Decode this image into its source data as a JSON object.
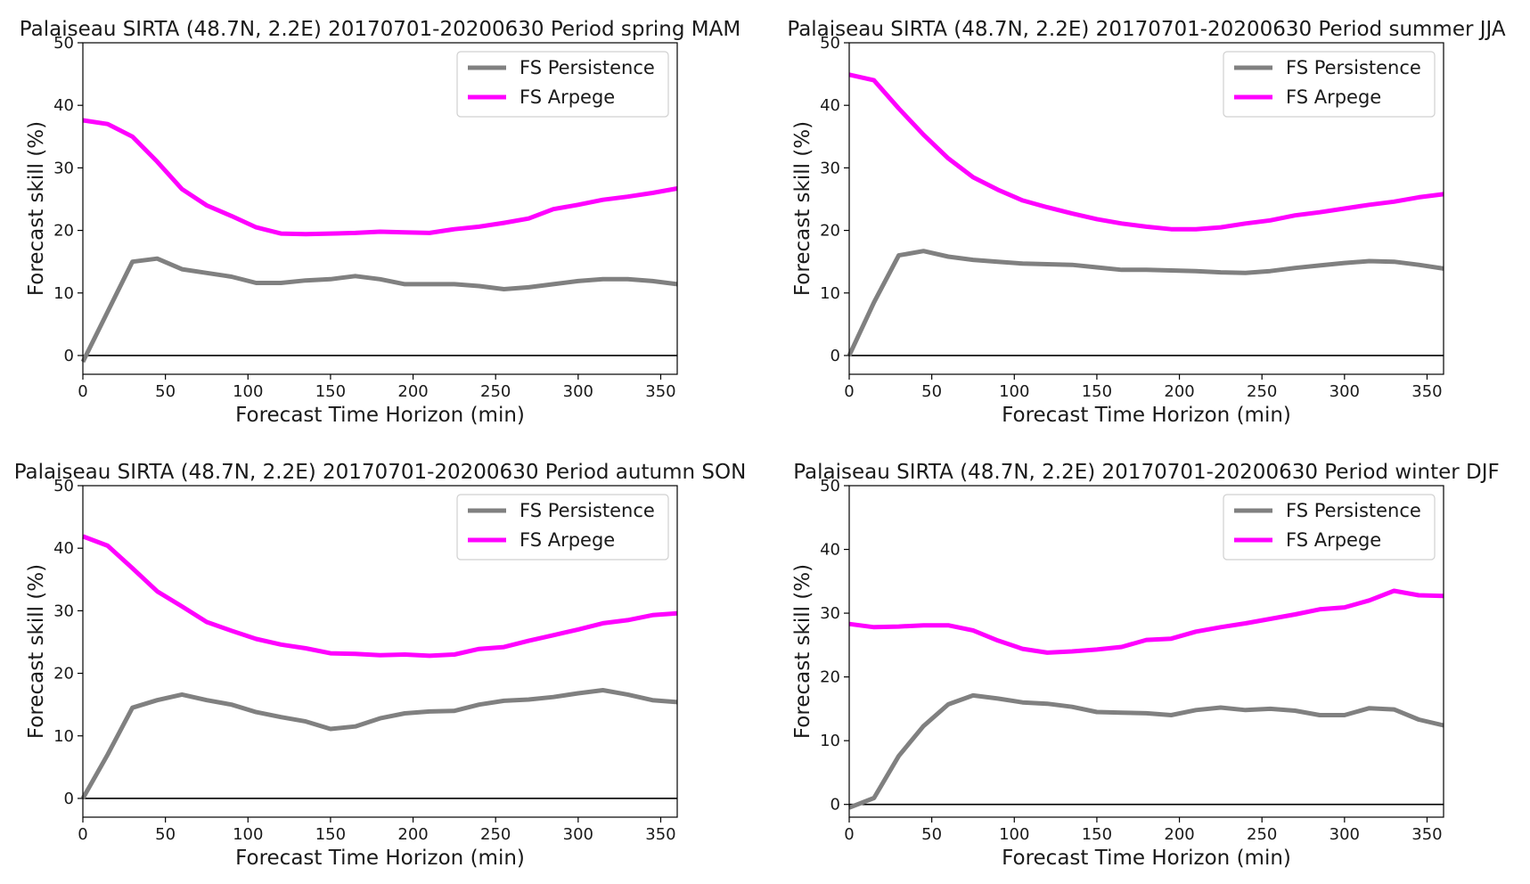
{
  "chart_data": [
    {
      "type": "line",
      "title": "Palaiseau SIRTA (48.7N, 2.2E) 20170701-20200630 Period spring MAM",
      "xlabel": "Forecast Time Horizon (min)",
      "ylabel": "Forecast skill (%)",
      "xlim": [
        0,
        360
      ],
      "ylim": [
        -3,
        50
      ],
      "xticks": [
        0,
        50,
        100,
        150,
        200,
        250,
        300,
        350
      ],
      "yticks": [
        0,
        10,
        20,
        30,
        40,
        50
      ],
      "legend": "top-right",
      "reference_line": 0,
      "x": [
        0,
        15,
        30,
        45,
        60,
        75,
        90,
        105,
        120,
        135,
        150,
        165,
        180,
        195,
        210,
        225,
        240,
        255,
        270,
        285,
        300,
        315,
        330,
        345,
        360
      ],
      "series": [
        {
          "name": "FS Persistence",
          "color": "#808080",
          "values": [
            -1,
            7,
            15,
            15.5,
            13.8,
            13.2,
            12.6,
            11.6,
            11.6,
            12,
            12.2,
            12.7,
            12.2,
            11.4,
            11.4,
            11.4,
            11.1,
            10.6,
            10.9,
            11.4,
            11.9,
            12.2,
            12.2,
            11.9,
            11.4
          ]
        },
        {
          "name": "FS Arpege",
          "color": "#ff00ff",
          "values": [
            37.6,
            37,
            35,
            31,
            26.6,
            24,
            22.3,
            20.5,
            19.5,
            19.4,
            19.5,
            19.6,
            19.8,
            19.7,
            19.6,
            20.2,
            20.6,
            21.2,
            21.9,
            23.4,
            24.1,
            24.9,
            25.4,
            26,
            26.7
          ]
        }
      ]
    },
    {
      "type": "line",
      "title": "Palaiseau SIRTA (48.7N, 2.2E) 20170701-20200630 Period summer JJA",
      "xlabel": "Forecast Time Horizon (min)",
      "ylabel": "Forecast skill (%)",
      "xlim": [
        0,
        360
      ],
      "ylim": [
        -3,
        50
      ],
      "xticks": [
        0,
        50,
        100,
        150,
        200,
        250,
        300,
        350
      ],
      "yticks": [
        0,
        10,
        20,
        30,
        40,
        50
      ],
      "legend": "top-right",
      "reference_line": 0,
      "x": [
        0,
        15,
        30,
        45,
        60,
        75,
        90,
        105,
        120,
        135,
        150,
        165,
        180,
        195,
        210,
        225,
        240,
        255,
        270,
        285,
        300,
        315,
        330,
        345,
        360
      ],
      "series": [
        {
          "name": "FS Persistence",
          "color": "#808080",
          "values": [
            0,
            8.5,
            16,
            16.7,
            15.8,
            15.3,
            15,
            14.7,
            14.6,
            14.5,
            14.1,
            13.7,
            13.7,
            13.6,
            13.5,
            13.3,
            13.2,
            13.5,
            14,
            14.4,
            14.8,
            15.1,
            15,
            14.5,
            13.9
          ]
        },
        {
          "name": "FS Arpege",
          "color": "#ff00ff",
          "values": [
            44.9,
            44,
            39.5,
            35.3,
            31.5,
            28.5,
            26.5,
            24.8,
            23.7,
            22.7,
            21.8,
            21.1,
            20.6,
            20.2,
            20.2,
            20.5,
            21.1,
            21.6,
            22.4,
            22.9,
            23.5,
            24.1,
            24.6,
            25.3,
            25.8
          ]
        }
      ]
    },
    {
      "type": "line",
      "title": "Palaiseau SIRTA (48.7N, 2.2E) 20170701-20200630 Period autumn SON",
      "xlabel": "Forecast Time Horizon (min)",
      "ylabel": "Forecast skill (%)",
      "xlim": [
        0,
        360
      ],
      "ylim": [
        -3,
        50
      ],
      "xticks": [
        0,
        50,
        100,
        150,
        200,
        250,
        300,
        350
      ],
      "yticks": [
        0,
        10,
        20,
        30,
        40,
        50
      ],
      "legend": "top-right",
      "reference_line": 0,
      "x": [
        0,
        15,
        30,
        45,
        60,
        75,
        90,
        105,
        120,
        135,
        150,
        165,
        180,
        195,
        210,
        225,
        240,
        255,
        270,
        285,
        300,
        315,
        330,
        345,
        360
      ],
      "series": [
        {
          "name": "FS Persistence",
          "color": "#808080",
          "values": [
            0,
            7,
            14.5,
            15.7,
            16.6,
            15.7,
            15,
            13.8,
            13,
            12.3,
            11.1,
            11.5,
            12.8,
            13.6,
            13.9,
            14,
            15,
            15.6,
            15.8,
            16.2,
            16.8,
            17.3,
            16.6,
            15.7,
            15.4
          ]
        },
        {
          "name": "FS Arpege",
          "color": "#ff00ff",
          "values": [
            41.9,
            40.4,
            36.8,
            33.1,
            30.7,
            28.2,
            26.8,
            25.5,
            24.6,
            24,
            23.2,
            23.1,
            22.9,
            23,
            22.8,
            23,
            23.9,
            24.2,
            25.2,
            26.1,
            27,
            28,
            28.5,
            29.3,
            29.6
          ]
        }
      ]
    },
    {
      "type": "line",
      "title": "Palaiseau SIRTA (48.7N, 2.2E) 20170701-20200630 Period winter DJF",
      "xlabel": "Forecast Time Horizon (min)",
      "ylabel": "Forecast skill (%)",
      "xlim": [
        0,
        360
      ],
      "ylim": [
        -2,
        50
      ],
      "xticks": [
        0,
        50,
        100,
        150,
        200,
        250,
        300,
        350
      ],
      "yticks": [
        0,
        10,
        20,
        30,
        40,
        50
      ],
      "legend": "top-right",
      "reference_line": 0,
      "x": [
        0,
        15,
        30,
        45,
        60,
        75,
        90,
        105,
        120,
        135,
        150,
        165,
        180,
        195,
        210,
        225,
        240,
        255,
        270,
        285,
        300,
        315,
        330,
        345,
        360
      ],
      "series": [
        {
          "name": "FS Persistence",
          "color": "#808080",
          "values": [
            -0.5,
            1,
            7.6,
            12.3,
            15.7,
            17.1,
            16.6,
            16,
            15.8,
            15.3,
            14.5,
            14.4,
            14.3,
            14,
            14.8,
            15.2,
            14.8,
            15,
            14.7,
            14,
            14,
            15.1,
            14.9,
            13.3,
            12.4
          ]
        },
        {
          "name": "FS Arpege",
          "color": "#ff00ff",
          "values": [
            28.3,
            27.8,
            27.9,
            28.1,
            28.1,
            27.3,
            25.7,
            24.4,
            23.8,
            24,
            24.3,
            24.7,
            25.8,
            26,
            27.1,
            27.8,
            28.4,
            29.1,
            29.8,
            30.6,
            30.9,
            32,
            33.5,
            32.8,
            32.7
          ]
        }
      ]
    }
  ]
}
